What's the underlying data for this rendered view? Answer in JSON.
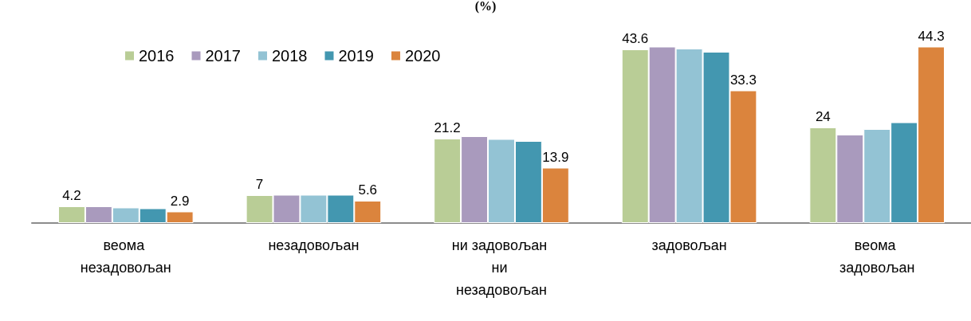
{
  "chart_data": {
    "type": "bar",
    "title": "(%)",
    "categories": [
      "веома незадовољан",
      "незадовољан",
      "ни задовољан ни незадовољан",
      "задовољан",
      "веома задовољан"
    ],
    "series": [
      {
        "name": "2016",
        "color": "#b9cd96",
        "values": [
          4.2,
          7,
          21.2,
          43.6,
          24
        ],
        "value_labels": [
          "4.2",
          "7",
          "21.2",
          "43.6",
          "24"
        ]
      },
      {
        "name": "2017",
        "color": "#a99abd",
        "values": [
          4.2,
          7.1,
          21.8,
          44.3,
          22.2
        ]
      },
      {
        "name": "2018",
        "color": "#93c3d4",
        "values": [
          3.9,
          7.1,
          21.1,
          43.8,
          23.6
        ]
      },
      {
        "name": "2019",
        "color": "#4397b0",
        "values": [
          3.7,
          7.1,
          20.6,
          43.0,
          25.3
        ]
      },
      {
        "name": "2020",
        "color": "#db843d",
        "values": [
          2.9,
          5.6,
          13.9,
          33.3,
          44.3
        ],
        "value_labels": [
          "2.9",
          "5.6",
          "13.9",
          "33.3",
          "44.3"
        ]
      }
    ],
    "legend": "top left"
  }
}
